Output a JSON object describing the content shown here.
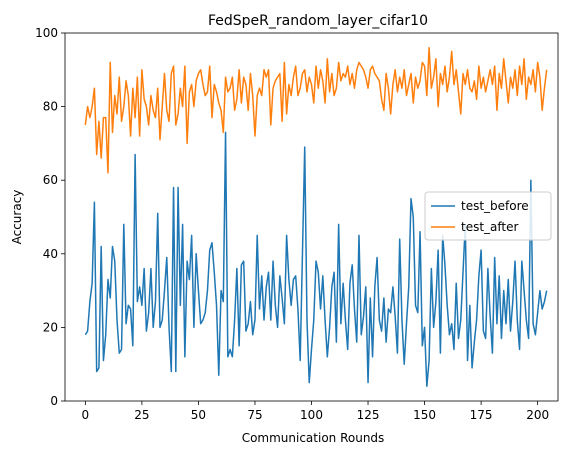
{
  "chart_data": {
    "type": "line",
    "title": "FedSpeR_random_layer_cifar10",
    "xlabel": "Communication Rounds",
    "ylabel": "Accuracy",
    "xlim": [
      -9,
      209
    ],
    "ylim": [
      0,
      100
    ],
    "xticks": [
      0,
      25,
      50,
      75,
      100,
      125,
      150,
      175,
      200
    ],
    "yticks": [
      0,
      20,
      40,
      60,
      80,
      100
    ],
    "grid": false,
    "legend_position": "center-right",
    "series": [
      {
        "name": "test_before",
        "color": "#1f77b4",
        "values": [
          18,
          19,
          27,
          32,
          54,
          8,
          9,
          42,
          11,
          18,
          33,
          28,
          42,
          38,
          22,
          13,
          14,
          48,
          21,
          26,
          25,
          15,
          67,
          27,
          31,
          26,
          36,
          19,
          24,
          36,
          20,
          27,
          51,
          20,
          22,
          30,
          39,
          20,
          8,
          58,
          8,
          58,
          26,
          48,
          12,
          38,
          33,
          45,
          20,
          40,
          30,
          21,
          22,
          24,
          30,
          41,
          43,
          35,
          26,
          7,
          30,
          27,
          73,
          12,
          14,
          12,
          22,
          36,
          15,
          37,
          38,
          19,
          21,
          27,
          18,
          22,
          45,
          25,
          34,
          22,
          31,
          35,
          22,
          38,
          26,
          20,
          34,
          28,
          21,
          45,
          33,
          26,
          33,
          34,
          25,
          11,
          40,
          69,
          22,
          5,
          14,
          22,
          38,
          35,
          25,
          34,
          22,
          12,
          20,
          31,
          35,
          16,
          48,
          21,
          32,
          22,
          14,
          32,
          37,
          25,
          16,
          45,
          18,
          23,
          31,
          5,
          28,
          12,
          31,
          39,
          22,
          19,
          28,
          16,
          25,
          24,
          31,
          23,
          13,
          44,
          22,
          10,
          21,
          31,
          55,
          50,
          26,
          24,
          46,
          15,
          20,
          4,
          11,
          36,
          20,
          27,
          41,
          13,
          45,
          37,
          26,
          18,
          21,
          14,
          32,
          17,
          22,
          35,
          48,
          11,
          26,
          9,
          16,
          22,
          34,
          41,
          19,
          17,
          36,
          23,
          13,
          39,
          21,
          34,
          17,
          30,
          21,
          33,
          19,
          27,
          38,
          22,
          14,
          38,
          30,
          22,
          17,
          60,
          21,
          18,
          24,
          30,
          25,
          27,
          30
        ]
      },
      {
        "name": "test_after",
        "color": "#ff7f0e",
        "values": [
          75,
          80,
          77,
          80,
          85,
          67,
          76,
          66,
          77,
          77,
          62,
          92,
          73,
          83,
          78,
          88,
          76,
          80,
          87,
          83,
          72,
          85,
          77,
          88,
          72,
          90,
          82,
          80,
          75,
          83,
          79,
          77,
          85,
          71,
          80,
          89,
          79,
          76,
          89,
          91,
          75,
          78,
          85,
          80,
          91,
          70,
          84,
          86,
          80,
          87,
          89,
          90,
          86,
          83,
          84,
          91,
          77,
          86,
          84,
          81,
          79,
          73,
          88,
          84,
          85,
          88,
          79,
          82,
          90,
          81,
          88,
          86,
          79,
          89,
          83,
          72,
          83,
          85,
          83,
          90,
          88,
          90,
          75,
          85,
          87,
          88,
          89,
          76,
          92,
          78,
          86,
          83,
          88,
          91,
          83,
          85,
          89,
          90,
          84,
          88,
          86,
          81,
          91,
          85,
          90,
          87,
          81,
          93,
          84,
          89,
          83,
          85,
          92,
          87,
          89,
          88,
          91,
          86,
          89,
          85,
          90,
          92,
          91,
          90,
          88,
          85,
          90,
          91,
          89,
          88,
          87,
          82,
          79,
          89,
          85,
          78,
          86,
          90,
          84,
          88,
          85,
          90,
          83,
          86,
          89,
          81,
          88,
          85,
          87,
          92,
          91,
          83,
          96,
          85,
          88,
          93,
          80,
          89,
          86,
          91,
          84,
          88,
          95,
          86,
          90,
          84,
          78,
          89,
          86,
          90,
          85,
          84,
          87,
          82,
          91,
          85,
          88,
          84,
          87,
          90,
          86,
          91,
          79,
          89,
          85,
          93,
          87,
          81,
          88,
          85,
          90,
          83,
          91,
          86,
          93,
          82,
          88,
          86,
          90,
          84,
          92,
          88,
          79,
          85,
          90
        ]
      }
    ]
  }
}
